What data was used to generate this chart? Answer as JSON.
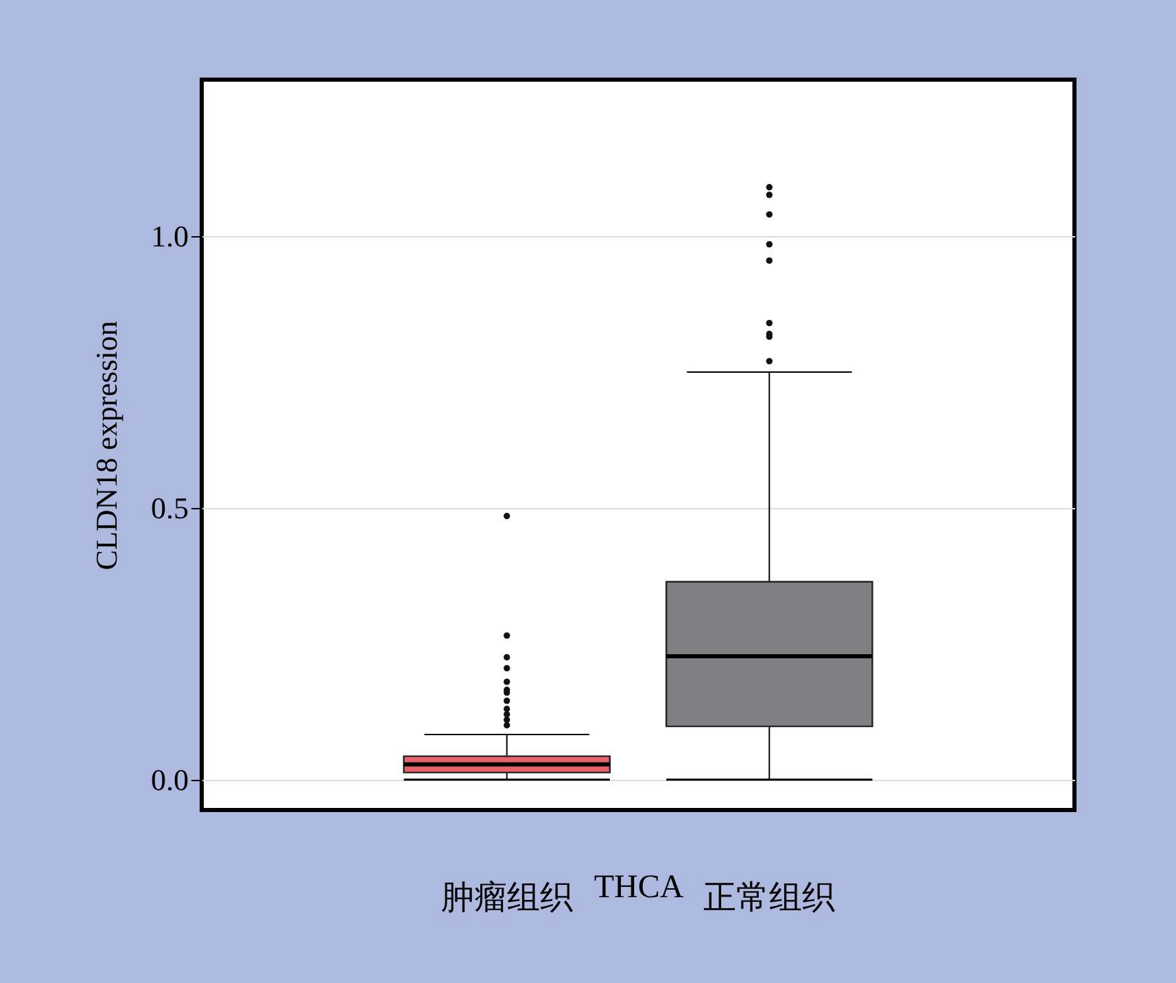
{
  "chart_data": {
    "type": "box",
    "categories": [
      "肿瘤组织",
      "正常组织"
    ],
    "xlabel": "THCA",
    "ylabel": "CLDN18 expression",
    "colors": [
      "#e8626a",
      "#808083"
    ],
    "boxes": [
      {
        "low": 0.0,
        "q1": 0.013,
        "median": 0.028,
        "q3": 0.043,
        "high": 0.083,
        "outliers": [
          0.485,
          0.265,
          0.225,
          0.205,
          0.18,
          0.165,
          0.16,
          0.145,
          0.13,
          0.12,
          0.11,
          0.1
        ]
      },
      {
        "low": 0.0,
        "q1": 0.098,
        "median": 0.227,
        "q3": 0.364,
        "high": 0.75,
        "outliers": [
          1.09,
          1.076,
          1.04,
          0.985,
          0.955,
          0.84,
          0.82,
          0.815,
          0.77
        ]
      }
    ],
    "ylim": [
      -0.056,
      1.288
    ],
    "yticks": [
      {
        "value": 0,
        "label": "0.0"
      },
      {
        "value": 0.5,
        "label": "0.5"
      },
      {
        "value": 1,
        "label": "1.0"
      }
    ],
    "grid": "y"
  }
}
